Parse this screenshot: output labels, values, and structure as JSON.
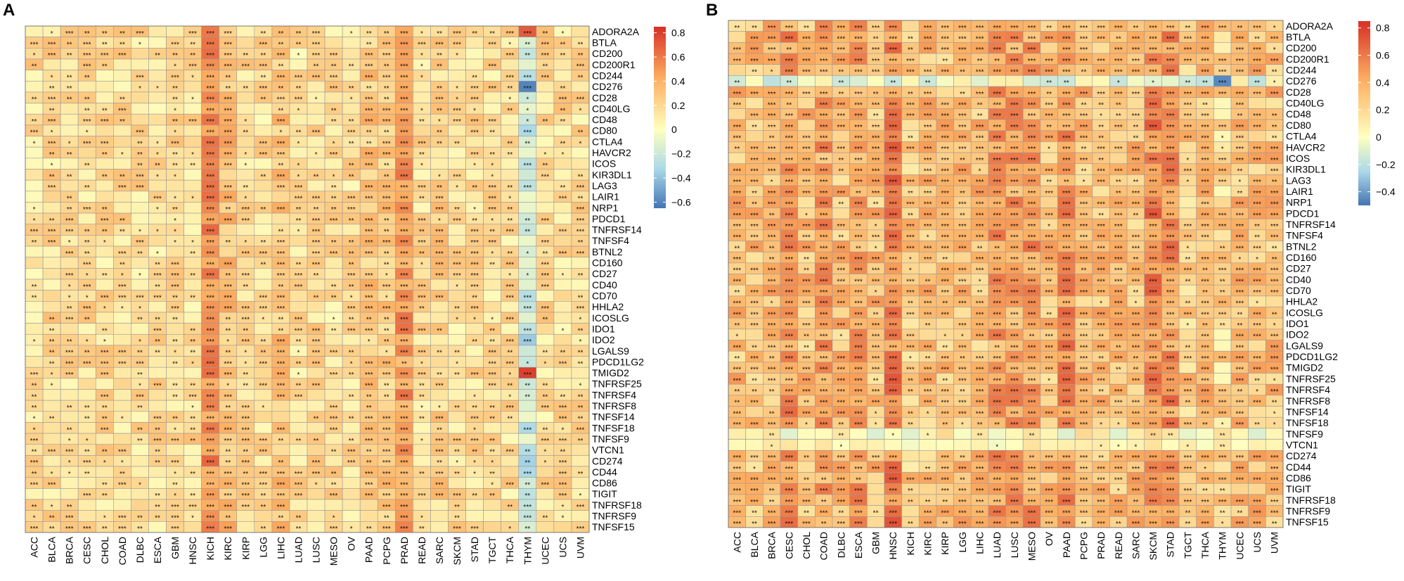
{
  "figure": {
    "panel_labels": [
      "A",
      "B"
    ]
  },
  "chart_data": [
    {
      "type": "heatmap",
      "panel": "A",
      "cancer_types": [
        "ACC",
        "BLCA",
        "BRCA",
        "CESC",
        "CHOL",
        "COAD",
        "DLBC",
        "ESCA",
        "GBM",
        "HNSC",
        "KICH",
        "KIRC",
        "KIRP",
        "LGG",
        "LIHC",
        "LUAD",
        "LUSC",
        "MESO",
        "OV",
        "PAAD",
        "PCPG",
        "PRAD",
        "READ",
        "SARC",
        "SKCM",
        "STAD",
        "TGCT",
        "THCA",
        "THYM",
        "UCEC",
        "UCS",
        "UVM"
      ],
      "genes": [
        "ADORA2A",
        "BTLA",
        "CD200",
        "CD200R1",
        "CD244",
        "CD276",
        "CD28",
        "CD40LG",
        "CD48",
        "CD80",
        "CTLA4",
        "HAVCR2",
        "ICOS",
        "KIR3DL1",
        "LAG3",
        "LAIR1",
        "NRP1",
        "PDCD1",
        "TNFRSF14",
        "TNFSF4",
        "BTNL2",
        "CD160",
        "CD27",
        "CD40",
        "CD70",
        "HHLA2",
        "ICOSLG",
        "IDO1",
        "IDO2",
        "LGALS9",
        "PDCD1LG2",
        "TMIGD2",
        "TNFRSF25",
        "TNFRSF4",
        "TNFRSF8",
        "TNFSF14",
        "TNFSF18",
        "TNFSF9",
        "VTCN1",
        "CD274",
        "CD44",
        "CD86",
        "TIGIT",
        "TNFRSF18",
        "TNFRSF9",
        "TNFSF15"
      ],
      "legend": {
        "range": [
          -0.65,
          0.85
        ],
        "ticks": [
          0.8,
          0.6,
          0.4,
          0.2,
          0,
          -0.2,
          -0.4,
          -0.6
        ],
        "tick_labels": [
          "0.8",
          "0.6",
          "0.4",
          "0.2",
          "0",
          "−0.2",
          "−0.4",
          "−0.6"
        ],
        "colors": [
          "#4575b4",
          "#abd9e9",
          "#ffffbf",
          "#fdae61",
          "#d73027"
        ]
      },
      "significance_marks": [
        "*",
        "**",
        "***"
      ],
      "cells": "46 rows (genes) × 32 columns (cancer types) of correlation coefficients, mostly 0 to 0.6, strongest in KICH and PRAD, negative in THYM; star marks denote significance"
    },
    {
      "type": "heatmap",
      "panel": "B",
      "cancer_types": [
        "ACC",
        "BLCA",
        "BRCA",
        "CESC",
        "CHOL",
        "COAD",
        "DLBC",
        "ESCA",
        "GBM",
        "HNSC",
        "KICH",
        "KIRC",
        "KIRP",
        "LGG",
        "LIHC",
        "LUAD",
        "LUSC",
        "MESO",
        "OV",
        "PAAD",
        "PCPG",
        "PRAD",
        "READ",
        "SARC",
        "SKCM",
        "STAD",
        "TGCT",
        "THCA",
        "THYM",
        "UCEC",
        "UCS",
        "UVM"
      ],
      "genes": [
        "ADORA2A",
        "BTLA",
        "CD200",
        "CD200R1",
        "CD244",
        "CD276",
        "CD28",
        "CD40LG",
        "CD48",
        "CD80",
        "CTLA4",
        "HAVCR2",
        "ICOS",
        "KIR3DL1",
        "LAG3",
        "LAIR1",
        "NRP1",
        "PDCD1",
        "TNFRSF14",
        "TNFSF4",
        "BTNL2",
        "CD160",
        "CD27",
        "CD40",
        "CD70",
        "HHLA2",
        "ICOSLG",
        "IDO1",
        "IDO2",
        "LGALS9",
        "PDCD1LG2",
        "TMIGD2",
        "TNFRSF25",
        "TNFRSF4",
        "TNFRSF8",
        "TNFSF14",
        "TNFSF18",
        "TNFSF9",
        "VTCN1",
        "CD274",
        "CD44",
        "CD86",
        "TIGIT",
        "TNFRSF18",
        "TNFRSF9",
        "TNFSF15"
      ],
      "legend": {
        "range": [
          -0.5,
          0.85
        ],
        "ticks": [
          0.8,
          0.6,
          0.4,
          0.2,
          0,
          -0.2,
          -0.4
        ],
        "tick_labels": [
          "0.8",
          "0.6",
          "0.4",
          "0.2",
          "0",
          "−0.2",
          "−0.4"
        ],
        "colors": [
          "#4575b4",
          "#abd9e9",
          "#ffffbf",
          "#fdae61",
          "#d73027"
        ]
      },
      "significance_marks": [
        "*",
        "**",
        "***"
      ],
      "cells": "46 rows (genes) × 32 columns (cancer types) of correlation coefficients, mostly 0.2 to 0.8, strongest in HNSC, SKCM, STAD, PAAD; negative for CD276 and in THYM; star marks denote significance"
    }
  ]
}
